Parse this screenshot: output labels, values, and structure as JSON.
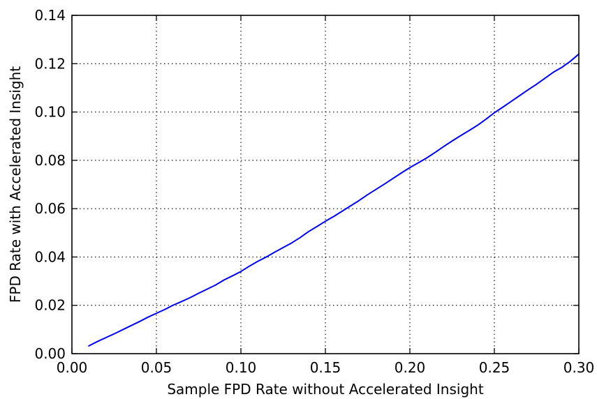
{
  "colors": {
    "line": "#0000ff",
    "axis": "#000000",
    "grid": "#000000",
    "background": "#ffffff"
  },
  "chart_data": {
    "type": "line",
    "title": "",
    "xlabel": "Sample FPD Rate without Accelerated Insight",
    "ylabel": "FPD Rate with Accelerated Insight",
    "xlim": [
      0.0,
      0.3
    ],
    "ylim": [
      0.0,
      0.14
    ],
    "xticks": [
      0.0,
      0.05,
      0.1,
      0.15,
      0.2,
      0.25,
      0.3
    ],
    "yticks": [
      0.0,
      0.02,
      0.04,
      0.06,
      0.08,
      0.1,
      0.12,
      0.14
    ],
    "xtick_labels": [
      "0.00",
      "0.05",
      "0.10",
      "0.15",
      "0.20",
      "0.25",
      "0.30"
    ],
    "ytick_labels": [
      "0.00",
      "0.02",
      "0.04",
      "0.06",
      "0.08",
      "0.10",
      "0.12",
      "0.14"
    ],
    "grid": true,
    "grid_style": "dotted",
    "series": [
      {
        "color": "#0000ff",
        "x": [
          0.01,
          0.015,
          0.02,
          0.025,
          0.03,
          0.035,
          0.04,
          0.045,
          0.05,
          0.055,
          0.06,
          0.065,
          0.07,
          0.075,
          0.08,
          0.085,
          0.09,
          0.095,
          0.1,
          0.105,
          0.11,
          0.115,
          0.12,
          0.125,
          0.13,
          0.135,
          0.14,
          0.145,
          0.15,
          0.155,
          0.16,
          0.165,
          0.17,
          0.175,
          0.18,
          0.185,
          0.19,
          0.195,
          0.2,
          0.205,
          0.21,
          0.215,
          0.22,
          0.225,
          0.23,
          0.235,
          0.24,
          0.245,
          0.25,
          0.255,
          0.26,
          0.265,
          0.27,
          0.275,
          0.28,
          0.285,
          0.29,
          0.295,
          0.3
        ],
        "y": [
          0.0032,
          0.005,
          0.0066,
          0.0082,
          0.0099,
          0.0116,
          0.0133,
          0.0151,
          0.0167,
          0.0183,
          0.0201,
          0.0216,
          0.0232,
          0.025,
          0.0267,
          0.0284,
          0.0305,
          0.0322,
          0.034,
          0.0362,
          0.0382,
          0.04,
          0.042,
          0.0439,
          0.0458,
          0.048,
          0.0505,
          0.0526,
          0.0548,
          0.0568,
          0.059,
          0.0612,
          0.0634,
          0.0658,
          0.068,
          0.0702,
          0.0725,
          0.0748,
          0.077,
          0.079,
          0.081,
          0.0833,
          0.0857,
          0.088,
          0.0902,
          0.0923,
          0.0945,
          0.097,
          0.0997,
          0.102,
          0.1044,
          0.1068,
          0.1092,
          0.1115,
          0.114,
          0.1165,
          0.1185,
          0.121,
          0.124
        ]
      }
    ]
  }
}
